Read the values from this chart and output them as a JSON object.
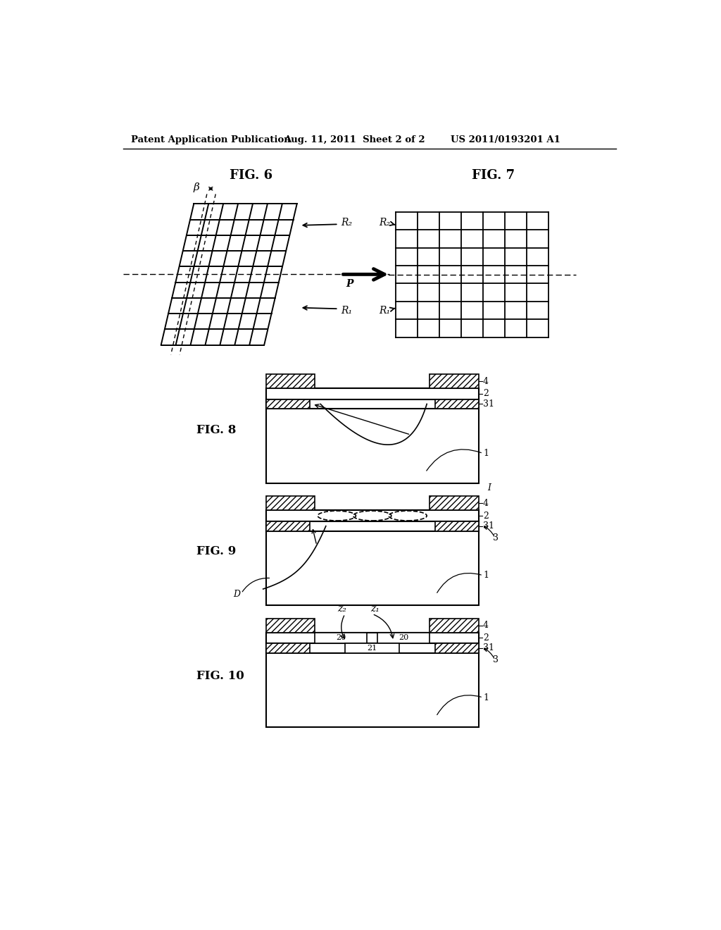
{
  "header_left": "Patent Application Publication",
  "header_mid": "Aug. 11, 2011  Sheet 2 of 2",
  "header_right": "US 2011/0193201 A1",
  "bg_color": "#ffffff"
}
